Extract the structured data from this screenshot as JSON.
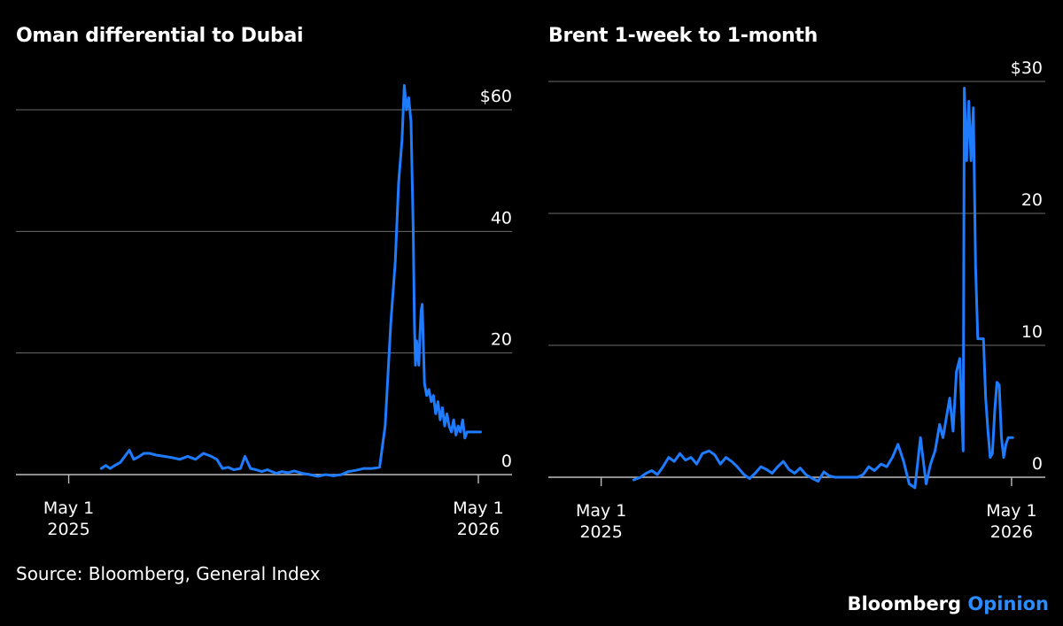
{
  "footer": {
    "source": "Source: Bloomberg, General Index",
    "brand_primary": "Bloomberg",
    "brand_secondary": "Opinion"
  },
  "colors": {
    "background": "#000000",
    "line": "#1f7bff",
    "grid": "#6b6b6b",
    "text": "#ffffff",
    "brand_accent": "#2b8cff"
  },
  "chart_data": [
    {
      "type": "line",
      "title": "Oman differential to Dubai",
      "xlabel": "",
      "ylabel": "",
      "x_range": [
        "2025-03-15",
        "2026-05-31"
      ],
      "ylim": [
        0,
        65
      ],
      "y_ticks": [
        {
          "value": 0,
          "label": "0"
        },
        {
          "value": 20,
          "label": "20"
        },
        {
          "value": 40,
          "label": "40"
        },
        {
          "value": 60,
          "label": "$60"
        }
      ],
      "x_ticks": [
        {
          "date": "2025-05-01",
          "label": [
            "May 1",
            "2025"
          ]
        },
        {
          "date": "2026-05-01",
          "label": [
            "May 1",
            "2026"
          ]
        }
      ],
      "grid": true,
      "series": [
        {
          "x": [
            "2025-05-30",
            "2025-06-03",
            "2025-06-07",
            "2025-06-11",
            "2025-06-16",
            "2025-06-20",
            "2025-06-24",
            "2025-06-28",
            "2025-07-03",
            "2025-07-07",
            "2025-07-12",
            "2025-07-18",
            "2025-07-25",
            "2025-08-01",
            "2025-08-08",
            "2025-08-15",
            "2025-08-22",
            "2025-08-29",
            "2025-09-05",
            "2025-09-10",
            "2025-09-15",
            "2025-09-20",
            "2025-09-25",
            "2025-10-01",
            "2025-10-05",
            "2025-10-10",
            "2025-10-15",
            "2025-10-20",
            "2025-10-25",
            "2025-10-29",
            "2025-11-02",
            "2025-11-07",
            "2025-11-12",
            "2025-11-18",
            "2025-11-25",
            "2025-12-02",
            "2025-12-09",
            "2025-12-16",
            "2025-12-23",
            "2025-12-30",
            "2026-01-05",
            "2026-01-12",
            "2026-01-19",
            "2026-01-26",
            "2026-02-02",
            "2026-02-07",
            "2026-02-12",
            "2026-02-16",
            "2026-02-19",
            "2026-02-22",
            "2026-02-24",
            "2026-02-26",
            "2026-02-28",
            "2026-03-02",
            "2026-03-04",
            "2026-03-05",
            "2026-03-06",
            "2026-03-07",
            "2026-03-08",
            "2026-03-09",
            "2026-03-10",
            "2026-03-11",
            "2026-03-12",
            "2026-03-14",
            "2026-03-16",
            "2026-03-18",
            "2026-03-20",
            "2026-03-22",
            "2026-03-24",
            "2026-03-25",
            "2026-03-26",
            "2026-03-28",
            "2026-03-30",
            "2026-04-01",
            "2026-04-03",
            "2026-04-05",
            "2026-04-07",
            "2026-04-09",
            "2026-04-11",
            "2026-04-13",
            "2026-04-15",
            "2026-04-17",
            "2026-04-19",
            "2026-04-21",
            "2026-04-23",
            "2026-04-25",
            "2026-04-27",
            "2026-04-29",
            "2026-05-01",
            "2026-05-03"
          ],
          "values": [
            1,
            1.5,
            1,
            1.5,
            2,
            3,
            4,
            2.5,
            3,
            3.5,
            3.5,
            3.2,
            3,
            2.8,
            2.5,
            3,
            2.5,
            3.5,
            3,
            2.5,
            1,
            1.2,
            0.8,
            1,
            3,
            1,
            0.8,
            0.5,
            0.8,
            0.5,
            0.2,
            0.5,
            0.3,
            0.6,
            0.2,
            0,
            -0.3,
            0,
            -0.2,
            0,
            0.5,
            0.7,
            1,
            1,
            1.2,
            8,
            25,
            35,
            48,
            55,
            64,
            60,
            62,
            58,
            40,
            25,
            18,
            22,
            20,
            18,
            23,
            27,
            28,
            15,
            13,
            14,
            12,
            13,
            10,
            11,
            12,
            9,
            11,
            8,
            10,
            8,
            7,
            9,
            6.5,
            8,
            7,
            9,
            6,
            7,
            7,
            7,
            7,
            7,
            7,
            7
          ],
          "_note": "values shifted to end at 2026-05-03"
        }
      ]
    },
    {
      "type": "line",
      "title": "Brent 1-week to 1-month",
      "xlabel": "",
      "ylabel": "",
      "x_range": [
        "2025-03-15",
        "2026-05-31"
      ],
      "ylim": [
        -1,
        30
      ],
      "y_ticks": [
        {
          "value": 0,
          "label": "0"
        },
        {
          "value": 10,
          "label": "10"
        },
        {
          "value": 20,
          "label": "20"
        },
        {
          "value": 30,
          "label": "$30"
        }
      ],
      "x_ticks": [
        {
          "date": "2025-05-01",
          "label": [
            "May 1",
            "2025"
          ]
        },
        {
          "date": "2026-05-01",
          "label": [
            "May 1",
            "2026"
          ]
        }
      ],
      "grid": true,
      "series": [
        {
          "x": [
            "2025-05-30",
            "2025-06-05",
            "2025-06-10",
            "2025-06-15",
            "2025-06-20",
            "2025-06-25",
            "2025-06-30",
            "2025-07-05",
            "2025-07-10",
            "2025-07-15",
            "2025-07-20",
            "2025-07-25",
            "2025-07-30",
            "2025-08-05",
            "2025-08-10",
            "2025-08-15",
            "2025-08-20",
            "2025-08-25",
            "2025-08-30",
            "2025-09-05",
            "2025-09-10",
            "2025-09-15",
            "2025-09-20",
            "2025-09-25",
            "2025-09-30",
            "2025-10-05",
            "2025-10-10",
            "2025-10-15",
            "2025-10-20",
            "2025-10-25",
            "2025-10-30",
            "2025-11-05",
            "2025-11-10",
            "2025-11-15",
            "2025-11-20",
            "2025-11-25",
            "2025-11-30",
            "2025-12-05",
            "2025-12-10",
            "2025-12-15",
            "2025-12-20",
            "2025-12-25",
            "2025-12-30",
            "2026-01-05",
            "2026-01-10",
            "2026-01-15",
            "2026-01-20",
            "2026-01-25",
            "2026-01-30",
            "2026-02-04",
            "2026-02-09",
            "2026-02-14",
            "2026-02-18",
            "2026-02-22",
            "2026-02-26",
            "2026-03-01",
            "2026-03-04",
            "2026-03-07",
            "2026-03-10",
            "2026-03-13",
            "2026-03-16",
            "2026-03-19",
            "2026-03-20",
            "2026-03-22",
            "2026-03-24",
            "2026-03-26",
            "2026-03-28",
            "2026-03-30",
            "2026-04-01",
            "2026-04-02",
            "2026-04-04",
            "2026-04-06",
            "2026-04-08",
            "2026-04-10",
            "2026-04-12",
            "2026-04-14",
            "2026-04-16",
            "2026-04-18",
            "2026-04-20",
            "2026-04-22",
            "2026-04-24",
            "2026-04-26",
            "2026-04-28",
            "2026-04-30",
            "2026-05-02"
          ],
          "values": [
            -0.2,
            0,
            0.3,
            0.5,
            0.2,
            0.8,
            1.5,
            1.2,
            1.8,
            1.3,
            1.5,
            1.0,
            1.8,
            2.0,
            1.7,
            1.0,
            1.5,
            1.2,
            0.8,
            0.2,
            -0.1,
            0.3,
            0.8,
            0.6,
            0.3,
            0.8,
            1.2,
            0.6,
            0.3,
            0.7,
            0.2,
            -0.1,
            -0.3,
            0.4,
            0.1,
            0,
            0,
            0,
            0,
            0,
            0.2,
            0.8,
            0.5,
            1.0,
            0.8,
            1.5,
            2.5,
            1.2,
            -0.5,
            -0.8,
            3.0,
            -0.5,
            1.0,
            2.0,
            4.0,
            3.0,
            4.5,
            6.0,
            3.5,
            8.0,
            9.0,
            2.0,
            29.5,
            24,
            28.5,
            24,
            28,
            16,
            10.5,
            10.5,
            10.5,
            10.5,
            6,
            3.5,
            1.5,
            1.8,
            5,
            7.2,
            7,
            3,
            1.5,
            2.5,
            3,
            3,
            3
          ],
          "_note": "values shifted to end at 2026-05-02"
        }
      ]
    }
  ]
}
